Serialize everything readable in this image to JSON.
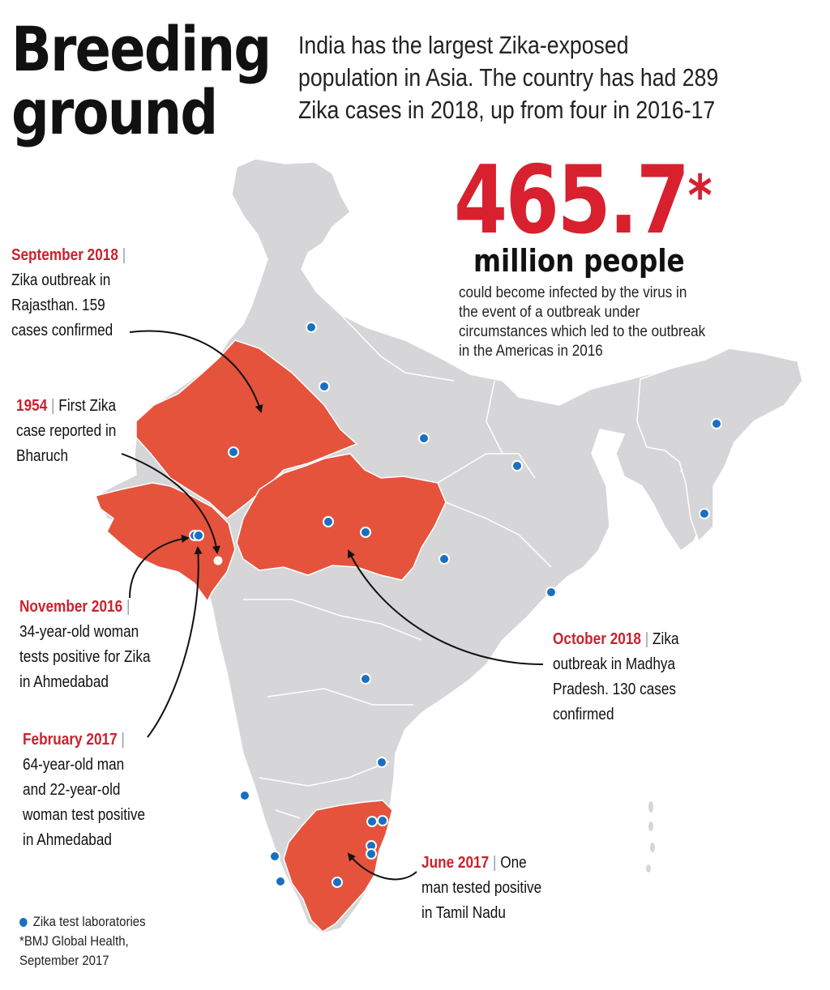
{
  "title": {
    "line1": "Breeding",
    "line2": "ground"
  },
  "intro": "India has the largest Zika-exposed population in Asia. The country has had 289 Zika cases in 2018, up from four in 2016-17",
  "headline_stat": {
    "value": "465.7",
    "marker": "*",
    "unit": "million people",
    "note": "could become infected by the virus in the event of a outbreak under circumstances which led to the outbreak in the Americas in 2016"
  },
  "callouts": [
    {
      "id": "rajasthan",
      "date": "September 2018",
      "text": "Zika outbreak in Rajasthan. 159 cases confirmed"
    },
    {
      "id": "bharuch",
      "date": "1954",
      "text": "First Zika case reported in Bharuch"
    },
    {
      "id": "ahmedabad-2016",
      "date": "November 2016",
      "text": "34-year-old woman tests positive for Zika in Ahmedabad"
    },
    {
      "id": "ahmedabad-2017",
      "date": "February 2017",
      "text": "64-year-old man and 22-year-old woman test positive in Ahmedabad"
    },
    {
      "id": "madhya-pradesh",
      "date": "October 2018",
      "text": "Zika outbreak in Madhya Pradesh. 130 cases confirmed"
    },
    {
      "id": "tamil-nadu",
      "date": "June 2017",
      "text": "One man tested positive in Tamil Nadu"
    }
  ],
  "legend": {
    "lab_label": "Zika test laboratories",
    "source_line1": "*BMJ Global Health,",
    "source_line2": "September 2017"
  },
  "colors": {
    "accent_red": "#d9202f",
    "affected_state": "#e5533d",
    "map_grey": "#d6d6d8",
    "lab_dot": "#1a6fc0"
  },
  "affected_states": [
    "Rajasthan",
    "Gujarat",
    "Madhya Pradesh",
    "Tamil Nadu"
  ],
  "lab_count": 24
}
